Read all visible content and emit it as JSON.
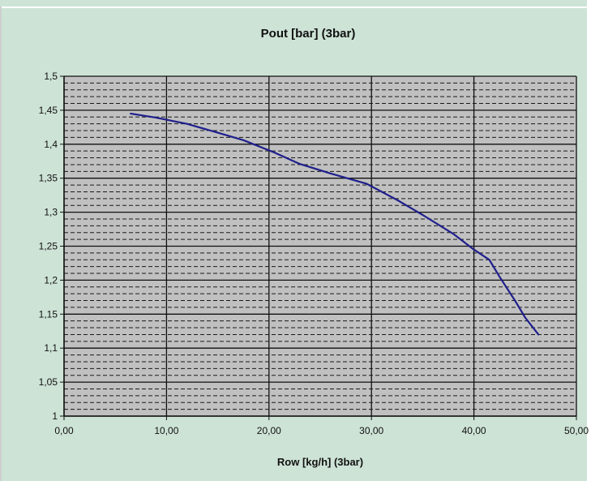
{
  "chart_data": {
    "type": "line",
    "title": "Pout [bar] (3bar)",
    "xlabel": "Row [kg/h] (3bar)",
    "ylabel": "",
    "xlim": [
      0,
      50
    ],
    "ylim": [
      1,
      1.5
    ],
    "x_ticks": [
      "0,00",
      "10,00",
      "20,00",
      "30,00",
      "40,00",
      "50,00"
    ],
    "y_ticks": [
      "1",
      "1,05",
      "1,1",
      "1,15",
      "1,2",
      "1,25",
      "1,3",
      "1,35",
      "1,4",
      "1,45",
      "1,5"
    ],
    "grid": true,
    "legend": "none",
    "colors": {
      "background": "#cde3d6",
      "plot_area": "#c0c0c0",
      "line": "#1f1f8c",
      "grid": "#111111"
    },
    "series": [
      {
        "points": [
          [
            6.5,
            1.445
          ],
          [
            9.0,
            1.439
          ],
          [
            12.0,
            1.43
          ],
          [
            15.0,
            1.417
          ],
          [
            17.5,
            1.406
          ],
          [
            20.5,
            1.388
          ],
          [
            23.0,
            1.371
          ],
          [
            26.0,
            1.357
          ],
          [
            29.5,
            1.342
          ],
          [
            32.5,
            1.318
          ],
          [
            35.0,
            1.296
          ],
          [
            38.0,
            1.268
          ],
          [
            40.0,
            1.245
          ],
          [
            41.5,
            1.23
          ],
          [
            42.5,
            1.205
          ],
          [
            44.0,
            1.17
          ],
          [
            45.0,
            1.145
          ],
          [
            46.3,
            1.12
          ]
        ]
      }
    ]
  }
}
